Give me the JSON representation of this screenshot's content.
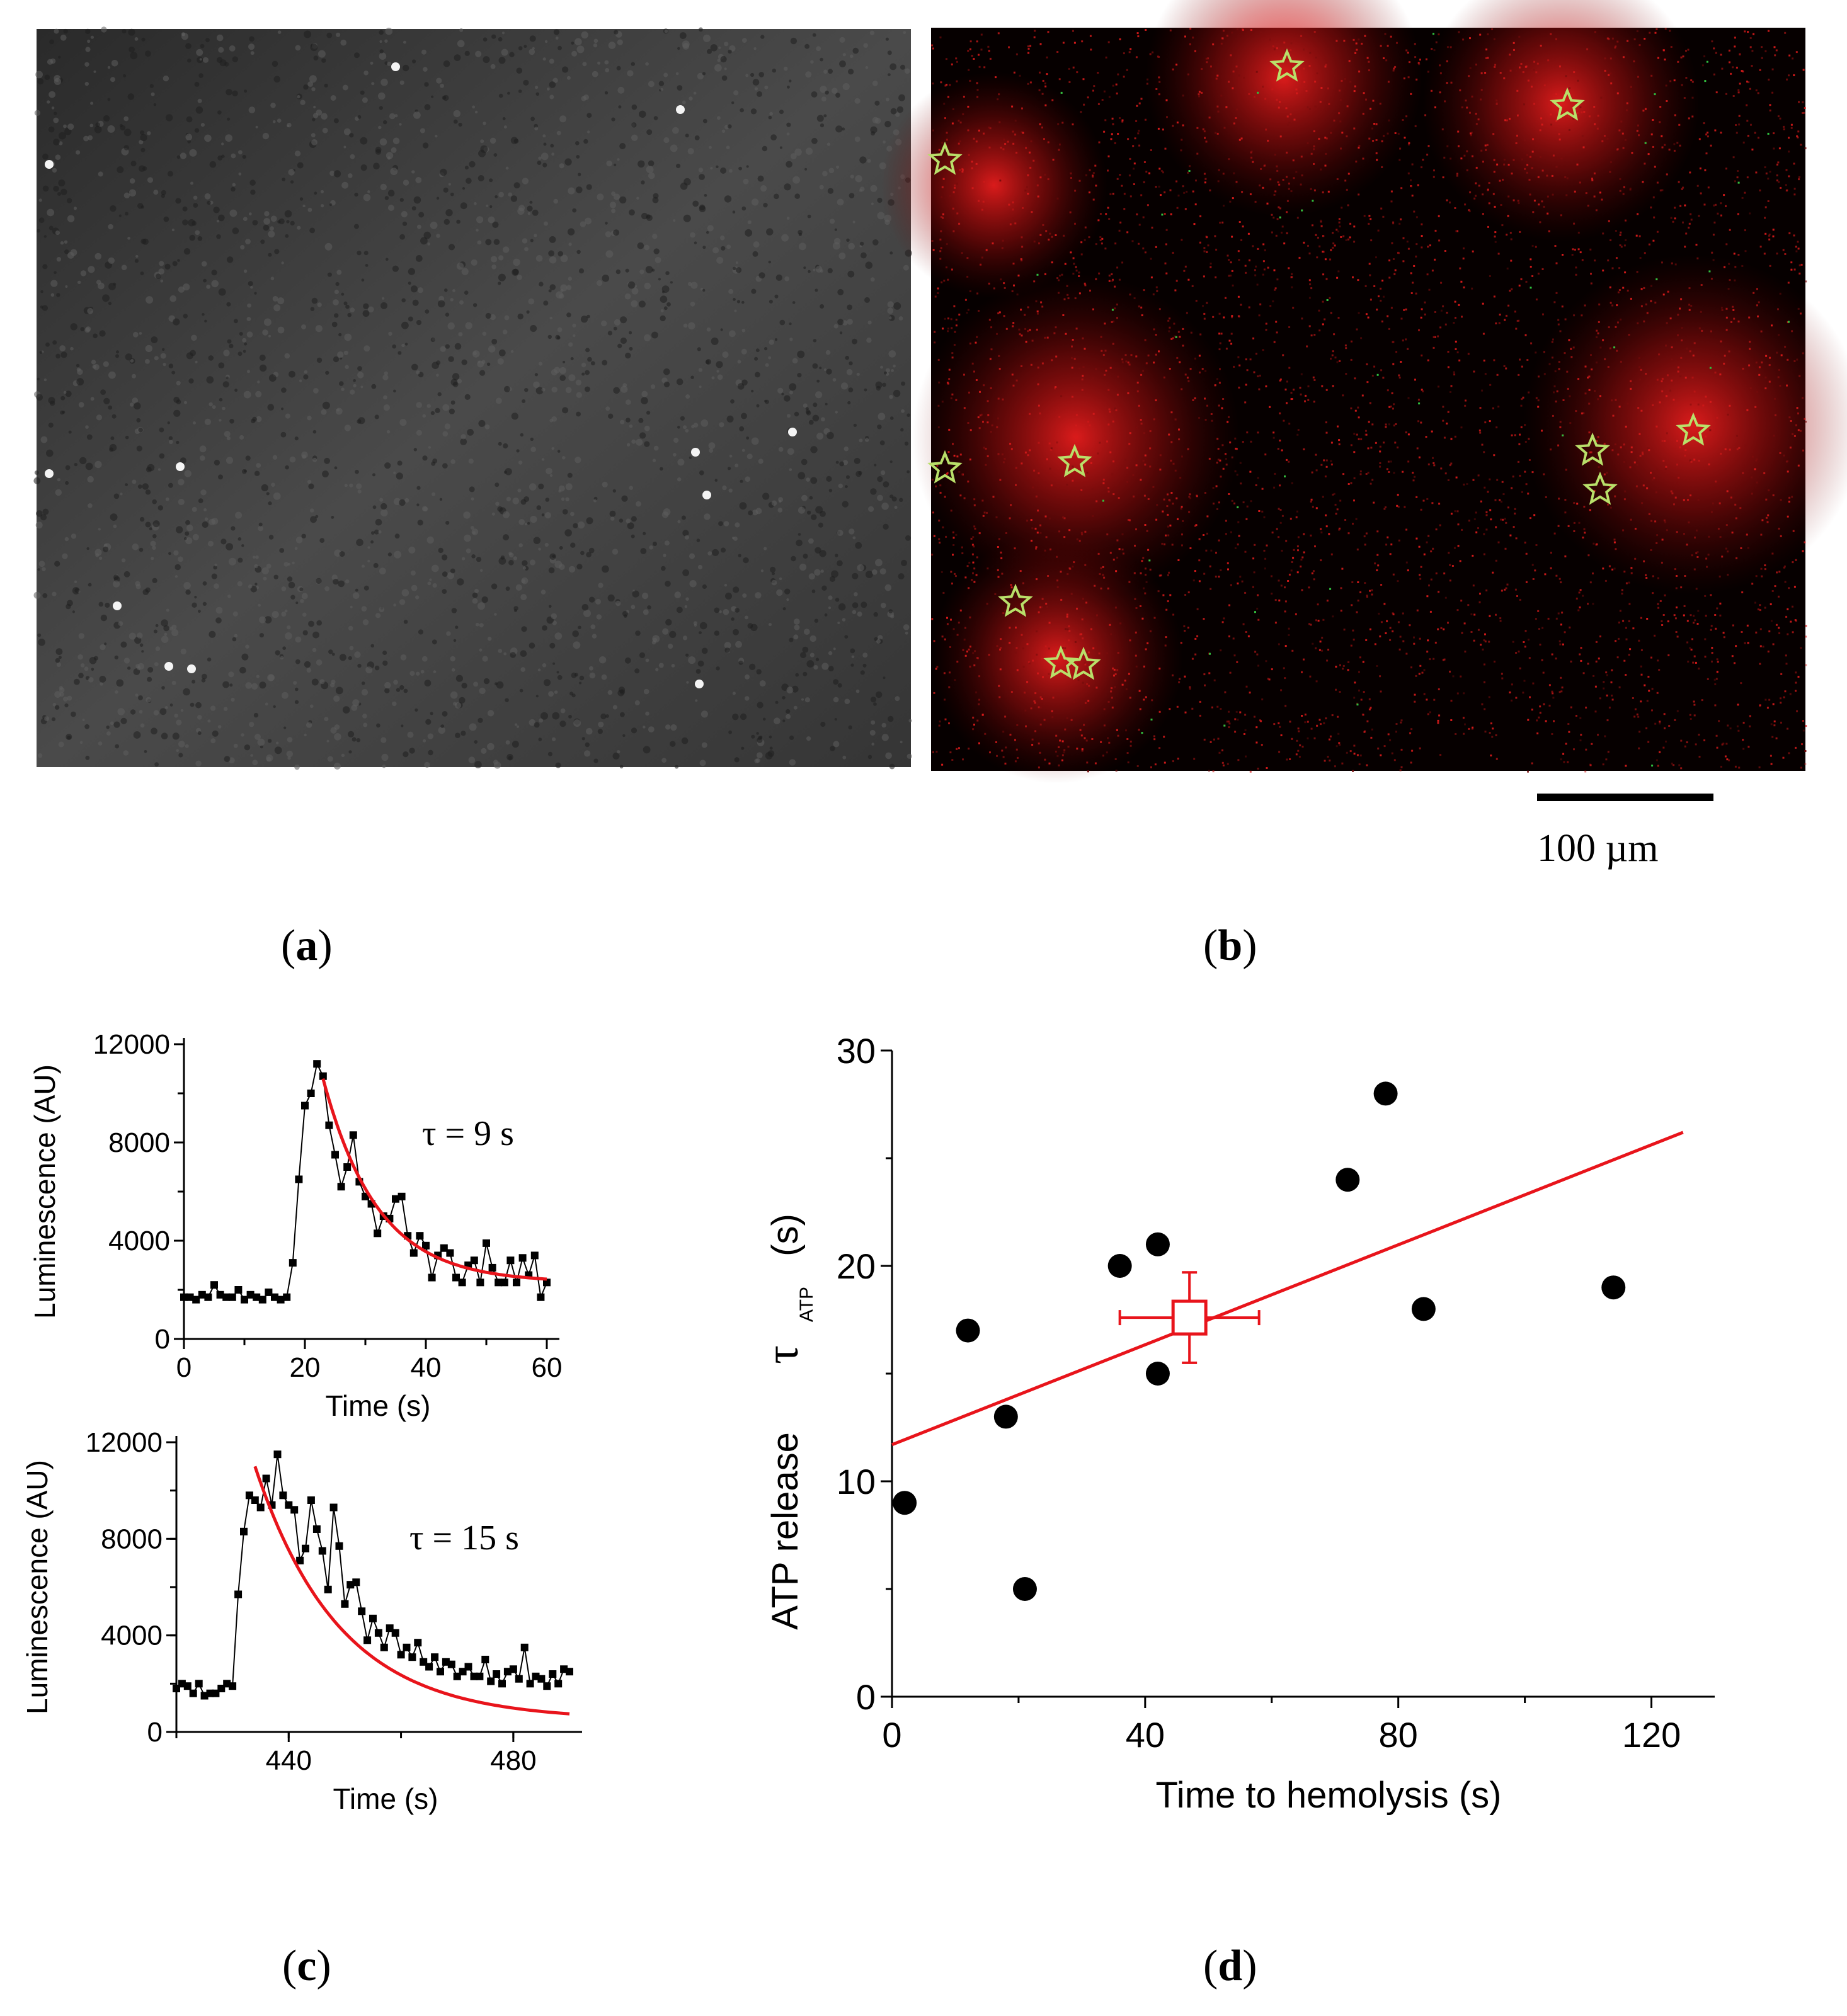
{
  "panels": {
    "a": {
      "label": "a"
    },
    "b": {
      "label": "b",
      "scale_bar_text": "100 µm"
    },
    "c": {
      "label": "c"
    },
    "d": {
      "label": "d"
    }
  },
  "colors": {
    "fit": "#e8141b",
    "points": "#000000",
    "star_stroke": "#b9e06a",
    "fluor_red": "#ff2a2a"
  },
  "chart_data": [
    {
      "id": "c-top",
      "type": "line",
      "xlabel": "Time (s)",
      "ylabel": "Luminescence (AU)",
      "xlim": [
        0,
        60
      ],
      "ylim": [
        0,
        12000
      ],
      "xticks": [
        0,
        20,
        40,
        60
      ],
      "yticks": [
        0,
        4000,
        8000,
        12000
      ],
      "annotation": "τ = 9    s",
      "x": [
        0,
        1,
        2,
        3,
        4,
        5,
        6,
        7,
        8,
        9,
        10,
        11,
        12,
        13,
        14,
        15,
        16,
        17,
        18,
        19,
        20,
        21,
        22,
        23,
        24,
        25,
        26,
        27,
        28,
        29,
        30,
        31,
        32,
        33,
        34,
        35,
        36,
        37,
        38,
        39,
        40,
        41,
        42,
        43,
        44,
        45,
        46,
        47,
        48,
        49,
        50,
        51,
        52,
        53,
        54,
        55,
        56,
        57,
        58,
        59,
        60
      ],
      "y": [
        1700,
        1700,
        1600,
        1800,
        1700,
        2200,
        1800,
        1700,
        1700,
        2000,
        1600,
        1800,
        1700,
        1600,
        1900,
        1700,
        1600,
        1700,
        3100,
        6500,
        9500,
        10000,
        11200,
        10700,
        8700,
        7500,
        6200,
        7000,
        8300,
        6400,
        5800,
        5500,
        4300,
        5000,
        4900,
        5700,
        5800,
        4200,
        3500,
        4200,
        3800,
        2500,
        3400,
        3700,
        3500,
        2500,
        2300,
        3000,
        3200,
        2300,
        3900,
        2900,
        2300,
        2300,
        3200,
        2300,
        3300,
        2600,
        3400,
        1700,
        2300
      ],
      "fit": {
        "tau": 9,
        "x_start": 23,
        "x_end": 60,
        "y_start": 10600,
        "plateau": 2300
      }
    },
    {
      "id": "c-bottom",
      "type": "line",
      "xlabel": "Time (s)",
      "ylabel": "Luminescence (AU)",
      "xlim": [
        420,
        490
      ],
      "ylim": [
        0,
        12000
      ],
      "xticks": [
        440,
        480
      ],
      "yticks": [
        0,
        4000,
        8000,
        12000
      ],
      "annotation": "τ = 15 s",
      "x": [
        420,
        421,
        422,
        423,
        424,
        425,
        426,
        427,
        428,
        429,
        430,
        431,
        432,
        433,
        434,
        435,
        436,
        437,
        438,
        439,
        440,
        441,
        442,
        443,
        444,
        445,
        446,
        447,
        448,
        449,
        450,
        451,
        452,
        453,
        454,
        455,
        456,
        457,
        458,
        459,
        460,
        461,
        462,
        463,
        464,
        465,
        466,
        467,
        468,
        469,
        470,
        471,
        472,
        473,
        474,
        475,
        476,
        477,
        478,
        479,
        480,
        481,
        482,
        483,
        484,
        485,
        486,
        487,
        488,
        489,
        490
      ],
      "y": [
        1800,
        2000,
        1900,
        1600,
        2000,
        1500,
        1600,
        1600,
        1800,
        2000,
        1900,
        5700,
        8300,
        9800,
        9600,
        9300,
        10500,
        9400,
        11500,
        9800,
        9400,
        9200,
        7100,
        7600,
        9600,
        8400,
        7500,
        5900,
        9300,
        7700,
        5300,
        6100,
        6200,
        5000,
        3800,
        4700,
        4100,
        3500,
        4300,
        4100,
        3200,
        3500,
        3100,
        3700,
        2900,
        2700,
        3100,
        2500,
        2900,
        2800,
        2300,
        2500,
        2700,
        2300,
        2300,
        3000,
        2100,
        2400,
        2000,
        2500,
        2600,
        2200,
        3500,
        2000,
        2300,
        2200,
        1900,
        2400,
        2000,
        2600,
        2500
      ],
      "fit": {
        "tau": 15,
        "x_start": 434,
        "x_end": 490,
        "y_start": 11000,
        "plateau": 500
      }
    },
    {
      "id": "d",
      "type": "scatter",
      "xlabel": "Time to hemolysis (s)",
      "ylabel_main": "ATP release",
      "ylabel_symbol": "τ",
      "ylabel_subscript": "ATP",
      "ylabel_unit": "(s)",
      "xlim": [
        0,
        130
      ],
      "ylim": [
        0,
        30
      ],
      "xticks": [
        0,
        40,
        80,
        120
      ],
      "yticks": [
        0,
        10,
        20,
        30
      ],
      "points": [
        {
          "x": 2,
          "y": 9
        },
        {
          "x": 12,
          "y": 17
        },
        {
          "x": 18,
          "y": 13
        },
        {
          "x": 21,
          "y": 5
        },
        {
          "x": 36,
          "y": 20
        },
        {
          "x": 42,
          "y": 21
        },
        {
          "x": 42,
          "y": 15
        },
        {
          "x": 72,
          "y": 24
        },
        {
          "x": 78,
          "y": 28
        },
        {
          "x": 84,
          "y": 18
        },
        {
          "x": 114,
          "y": 19
        }
      ],
      "mean": {
        "x": 47,
        "y": 17.6,
        "xerr": 11,
        "yerr": 2.1
      },
      "fit_line": {
        "x_start": 0,
        "y_start": 11.7,
        "x_end": 125,
        "y_end": 26.2
      }
    }
  ]
}
